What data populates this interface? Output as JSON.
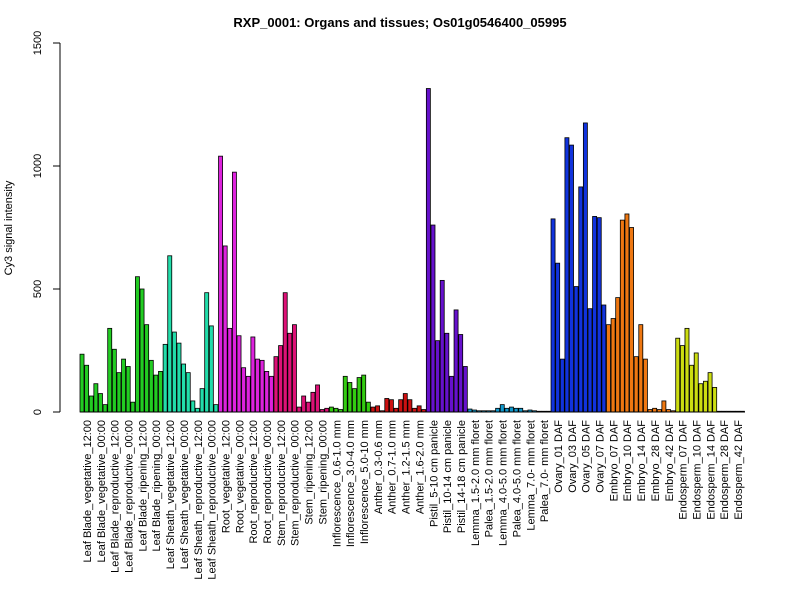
{
  "chart_data": {
    "type": "bar",
    "title": "RXP_0001: Organs and tissues; Os01g0546400_05995",
    "xlabel": "",
    "ylabel": "Cy3 signal intensity",
    "ylim": [
      0,
      1500
    ],
    "yticks": [
      0,
      500,
      1000,
      1500
    ],
    "grid": false,
    "categories": [
      "Leaf Blade_vegetative_12:00",
      "Leaf Blade_vegetative_00:00",
      "Leaf Blade_reproductive_12:00",
      "Leaf Blade_reproductive_00:00",
      "Leaf Blade_ripening_12:00",
      "Leaf Blade_ripening_00:00",
      "Leaf Sheath_vegetative_12:00",
      "Leaf Sheath_vegetative_00:00",
      "Leaf Sheath_reproductive_12:00",
      "Leaf Sheath_reproductive_00:00",
      "Root_vegetative_12:00",
      "Root_vegetative_00:00",
      "Root_reproductive_12:00",
      "Root_reproductive_00:00",
      "Stem_reproductive_12:00",
      "Stem_reproductive_00:00",
      "Stem_ripening_12:00",
      "Stem_ripening_00:00",
      "Inflorescence_0.6-1.0 mm",
      "Inflorescence_3.0-4.0 mm",
      "Inflorescence_5.0-10 mm",
      "Anther_0.3-0.6 mm",
      "Anther_0.7-1.0 mm",
      "Anther_1.2-1.5 mm",
      "Anther_1.6-2.0 mm",
      "Pistil_5-10 cm panicle",
      "Pistil_10-14 cm panicle",
      "Pistil_14-18 cm panicle",
      "Lemma_1.5-2.0 mm floret",
      "Palea_1.5-2.0 mm floret",
      "Lemma_4.0-5.0 mm floret",
      "Palea_4.0-5.0 mm floret",
      "Lemma_7.0- mm floret",
      "Palea_7.0- mm floret",
      "Ovary_01 DAF",
      "Ovary_03 DAF",
      "Ovary_05 DAF",
      "Ovary_07 DAF",
      "Embryo_07 DAF",
      "Embryo_10 DAF",
      "Embryo_14 DAF",
      "Embryo_28 DAF",
      "Embryo_42 DAF",
      "Endosperm_07 DAF",
      "Endosperm_10 DAF",
      "Endosperm_14 DAF",
      "Endosperm_28 DAF",
      "Endosperm_42 DAF"
    ],
    "group_colors": [
      "#22cc22",
      "#22cc22",
      "#22cc22",
      "#22cc22",
      "#22cc22",
      "#22cc22",
      "#22ddaa",
      "#22ddaa",
      "#22ddaa",
      "#22ddaa",
      "#dd22dd",
      "#dd22dd",
      "#dd22dd",
      "#dd22dd",
      "#dd1177",
      "#dd1177",
      "#dd1177",
      "#dd1177",
      "#33cc11",
      "#33cc11",
      "#33cc11",
      "#cc1111",
      "#cc1111",
      "#cc1111",
      "#cc1111",
      "#6611cc",
      "#6611cc",
      "#6611cc",
      "#1199cc",
      "#1199cc",
      "#1199cc",
      "#1199cc",
      "#1199cc",
      "#1199cc",
      "#1133dd",
      "#1133dd",
      "#1133dd",
      "#1133dd",
      "#ee7711",
      "#ee7711",
      "#ee7711",
      "#ee7711",
      "#ee7711",
      "#ccdd11",
      "#ccdd11",
      "#ccdd11",
      "#ccdd11",
      "#ccdd11"
    ],
    "values": [
      [
        235,
        190,
        65
      ],
      [
        115,
        75,
        30
      ],
      [
        340,
        255,
        160
      ],
      [
        215,
        185,
        40
      ],
      [
        550,
        500,
        355
      ],
      [
        210,
        150,
        165
      ],
      [
        275,
        635,
        325
      ],
      [
        280,
        195,
        160
      ],
      [
        45,
        15,
        95
      ],
      [
        485,
        350,
        30
      ],
      [
        1040,
        675,
        340
      ],
      [
        975,
        310,
        180
      ],
      [
        145,
        305,
        215
      ],
      [
        210,
        165,
        145
      ],
      [
        225,
        270,
        485
      ],
      [
        320,
        355,
        20
      ],
      [
        65,
        40,
        80
      ],
      [
        110,
        10,
        15
      ],
      [
        20,
        15,
        10
      ],
      [
        145,
        120,
        95
      ],
      [
        140,
        150,
        40
      ],
      [
        20,
        25,
        5
      ],
      [
        55,
        50,
        15
      ],
      [
        50,
        75,
        50
      ],
      [
        15,
        25,
        10
      ],
      [
        1315,
        760,
        290
      ],
      [
        535,
        320,
        145
      ],
      [
        415,
        315,
        185
      ],
      [
        12,
        8,
        5
      ],
      [
        5,
        5,
        5
      ],
      [
        15,
        30,
        15
      ],
      [
        20,
        15,
        15
      ],
      [
        5,
        8,
        5
      ],
      [
        3,
        3,
        3
      ],
      [
        785,
        605,
        215
      ],
      [
        1115,
        1085,
        510
      ],
      [
        915,
        1175,
        420
      ],
      [
        795,
        790,
        435
      ],
      [
        355,
        380,
        465
      ],
      [
        780,
        805,
        750
      ],
      [
        225,
        355,
        215
      ],
      [
        10,
        15,
        10
      ],
      [
        45,
        10,
        5
      ],
      [
        300,
        270,
        340
      ],
      [
        190,
        240,
        115
      ],
      [
        125,
        160,
        100
      ],
      [
        3,
        3,
        3
      ],
      [
        3,
        3,
        3
      ]
    ]
  }
}
